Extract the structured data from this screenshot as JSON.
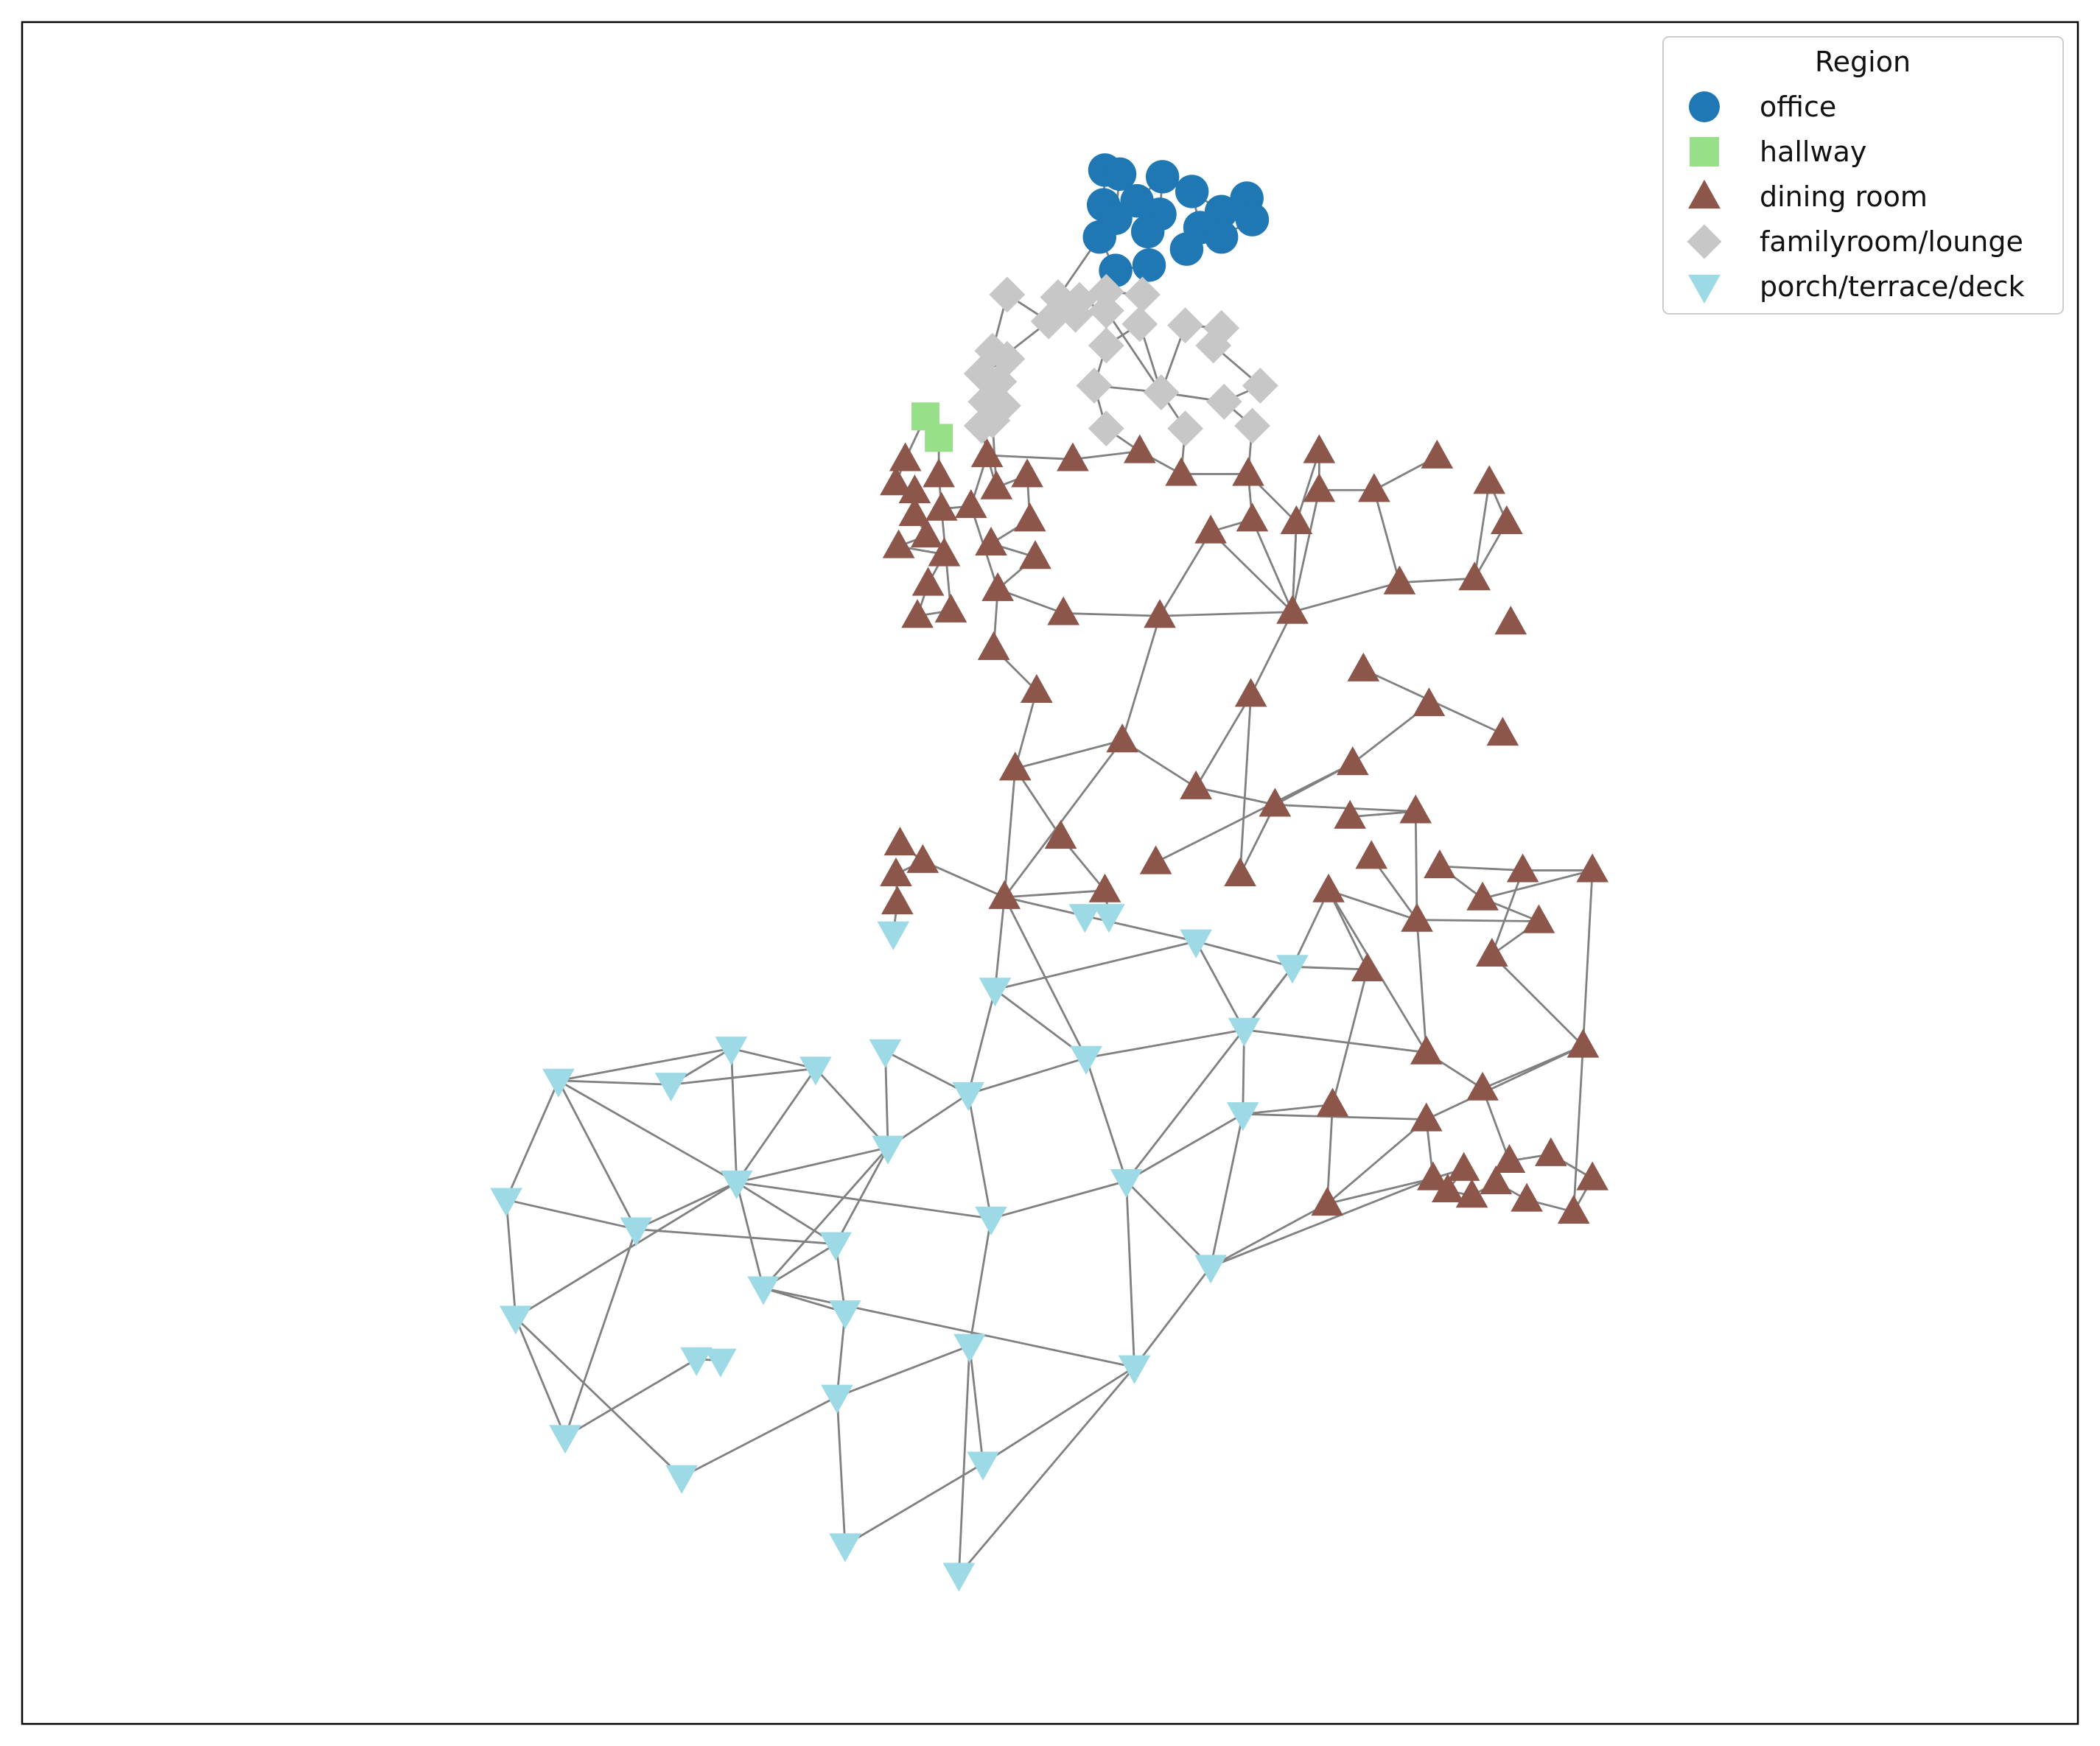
{
  "legend": {
    "title": "Region",
    "entries": [
      {
        "label": "office",
        "marker": "circle",
        "color": "#1f77b4"
      },
      {
        "label": "hallway",
        "marker": "square",
        "color": "#98df8a"
      },
      {
        "label": "dining room",
        "marker": "triangle-up",
        "color": "#8c564b"
      },
      {
        "label": "familyroom/lounge",
        "marker": "diamond",
        "color": "#c7c7c7"
      },
      {
        "label": "porch/terrace/deck",
        "marker": "triangle-down",
        "color": "#9edae5"
      }
    ]
  },
  "edge_color": "#808080",
  "frame": {
    "border": "#000000",
    "axes_ticks": "none"
  },
  "chart_data": {
    "type": "network graph",
    "legend_placement": "top-right",
    "groups": [
      {
        "name": "office",
        "node_count": 21
      },
      {
        "name": "hallway",
        "node_count": 2
      },
      {
        "name": "dining room",
        "node_count": 101
      },
      {
        "name": "familyroom/lounge",
        "node_count": 35
      },
      {
        "name": "porch/terrace/deck",
        "node_count": 39
      }
    ]
  }
}
